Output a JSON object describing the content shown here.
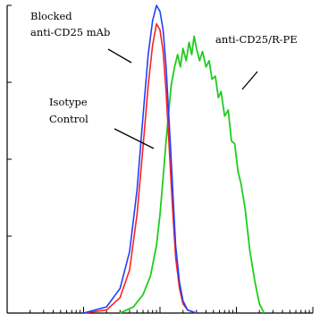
{
  "chart_data": {
    "type": "line",
    "title": "",
    "xlabel": "",
    "ylabel": "",
    "x_scale": "log",
    "xlim": [
      1,
      10000
    ],
    "ylim": [
      0,
      100
    ],
    "grid": false,
    "legend": "none",
    "annotations": [
      {
        "id": "blocked",
        "lines": [
          "Blocked",
          "anti-CD25 mAb"
        ]
      },
      {
        "id": "isotype",
        "lines": [
          "Isotype",
          "Control"
        ]
      },
      {
        "id": "antibody",
        "lines": [
          "anti-CD25/R-PE"
        ]
      }
    ],
    "series": [
      {
        "key": "blocked",
        "color": "#2040ff",
        "x": [
          10,
          20,
          30,
          40,
          50,
          60,
          70,
          80,
          90,
          100,
          110,
          120,
          130,
          140,
          150,
          160,
          180,
          200,
          230,
          260,
          300
        ],
        "y": [
          0,
          2,
          8,
          20,
          40,
          64,
          84,
          95,
          100,
          98,
          92,
          80,
          65,
          50,
          35,
          22,
          10,
          4,
          1,
          0.5,
          0
        ]
      },
      {
        "key": "isotype",
        "color": "#ff2020",
        "x": [
          10,
          20,
          30,
          40,
          50,
          60,
          70,
          80,
          90,
          100,
          110,
          120,
          130,
          140,
          150,
          160,
          180,
          200,
          230,
          260,
          300
        ],
        "y": [
          0,
          1,
          5,
          14,
          32,
          54,
          74,
          87,
          94,
          92,
          85,
          72,
          57,
          42,
          29,
          18,
          8,
          3,
          1,
          0.5,
          0
        ]
      },
      {
        "key": "antibody",
        "color": "#20cc20",
        "x": [
          30,
          45,
          60,
          75,
          90,
          100,
          110,
          120,
          130,
          140,
          155,
          170,
          185,
          200,
          220,
          240,
          260,
          280,
          300,
          330,
          360,
          400,
          440,
          480,
          530,
          580,
          630,
          700,
          780,
          860,
          950,
          1050,
          1150,
          1300,
          1500,
          1750,
          2000,
          2300
        ],
        "y": [
          0,
          2,
          6,
          12,
          22,
          32,
          44,
          56,
          65,
          74,
          80,
          84,
          80,
          86,
          82,
          88,
          84,
          90,
          86,
          82,
          85,
          80,
          82,
          76,
          77,
          70,
          72,
          64,
          66,
          56,
          55,
          46,
          42,
          34,
          20,
          10,
          3,
          0
        ]
      }
    ]
  }
}
